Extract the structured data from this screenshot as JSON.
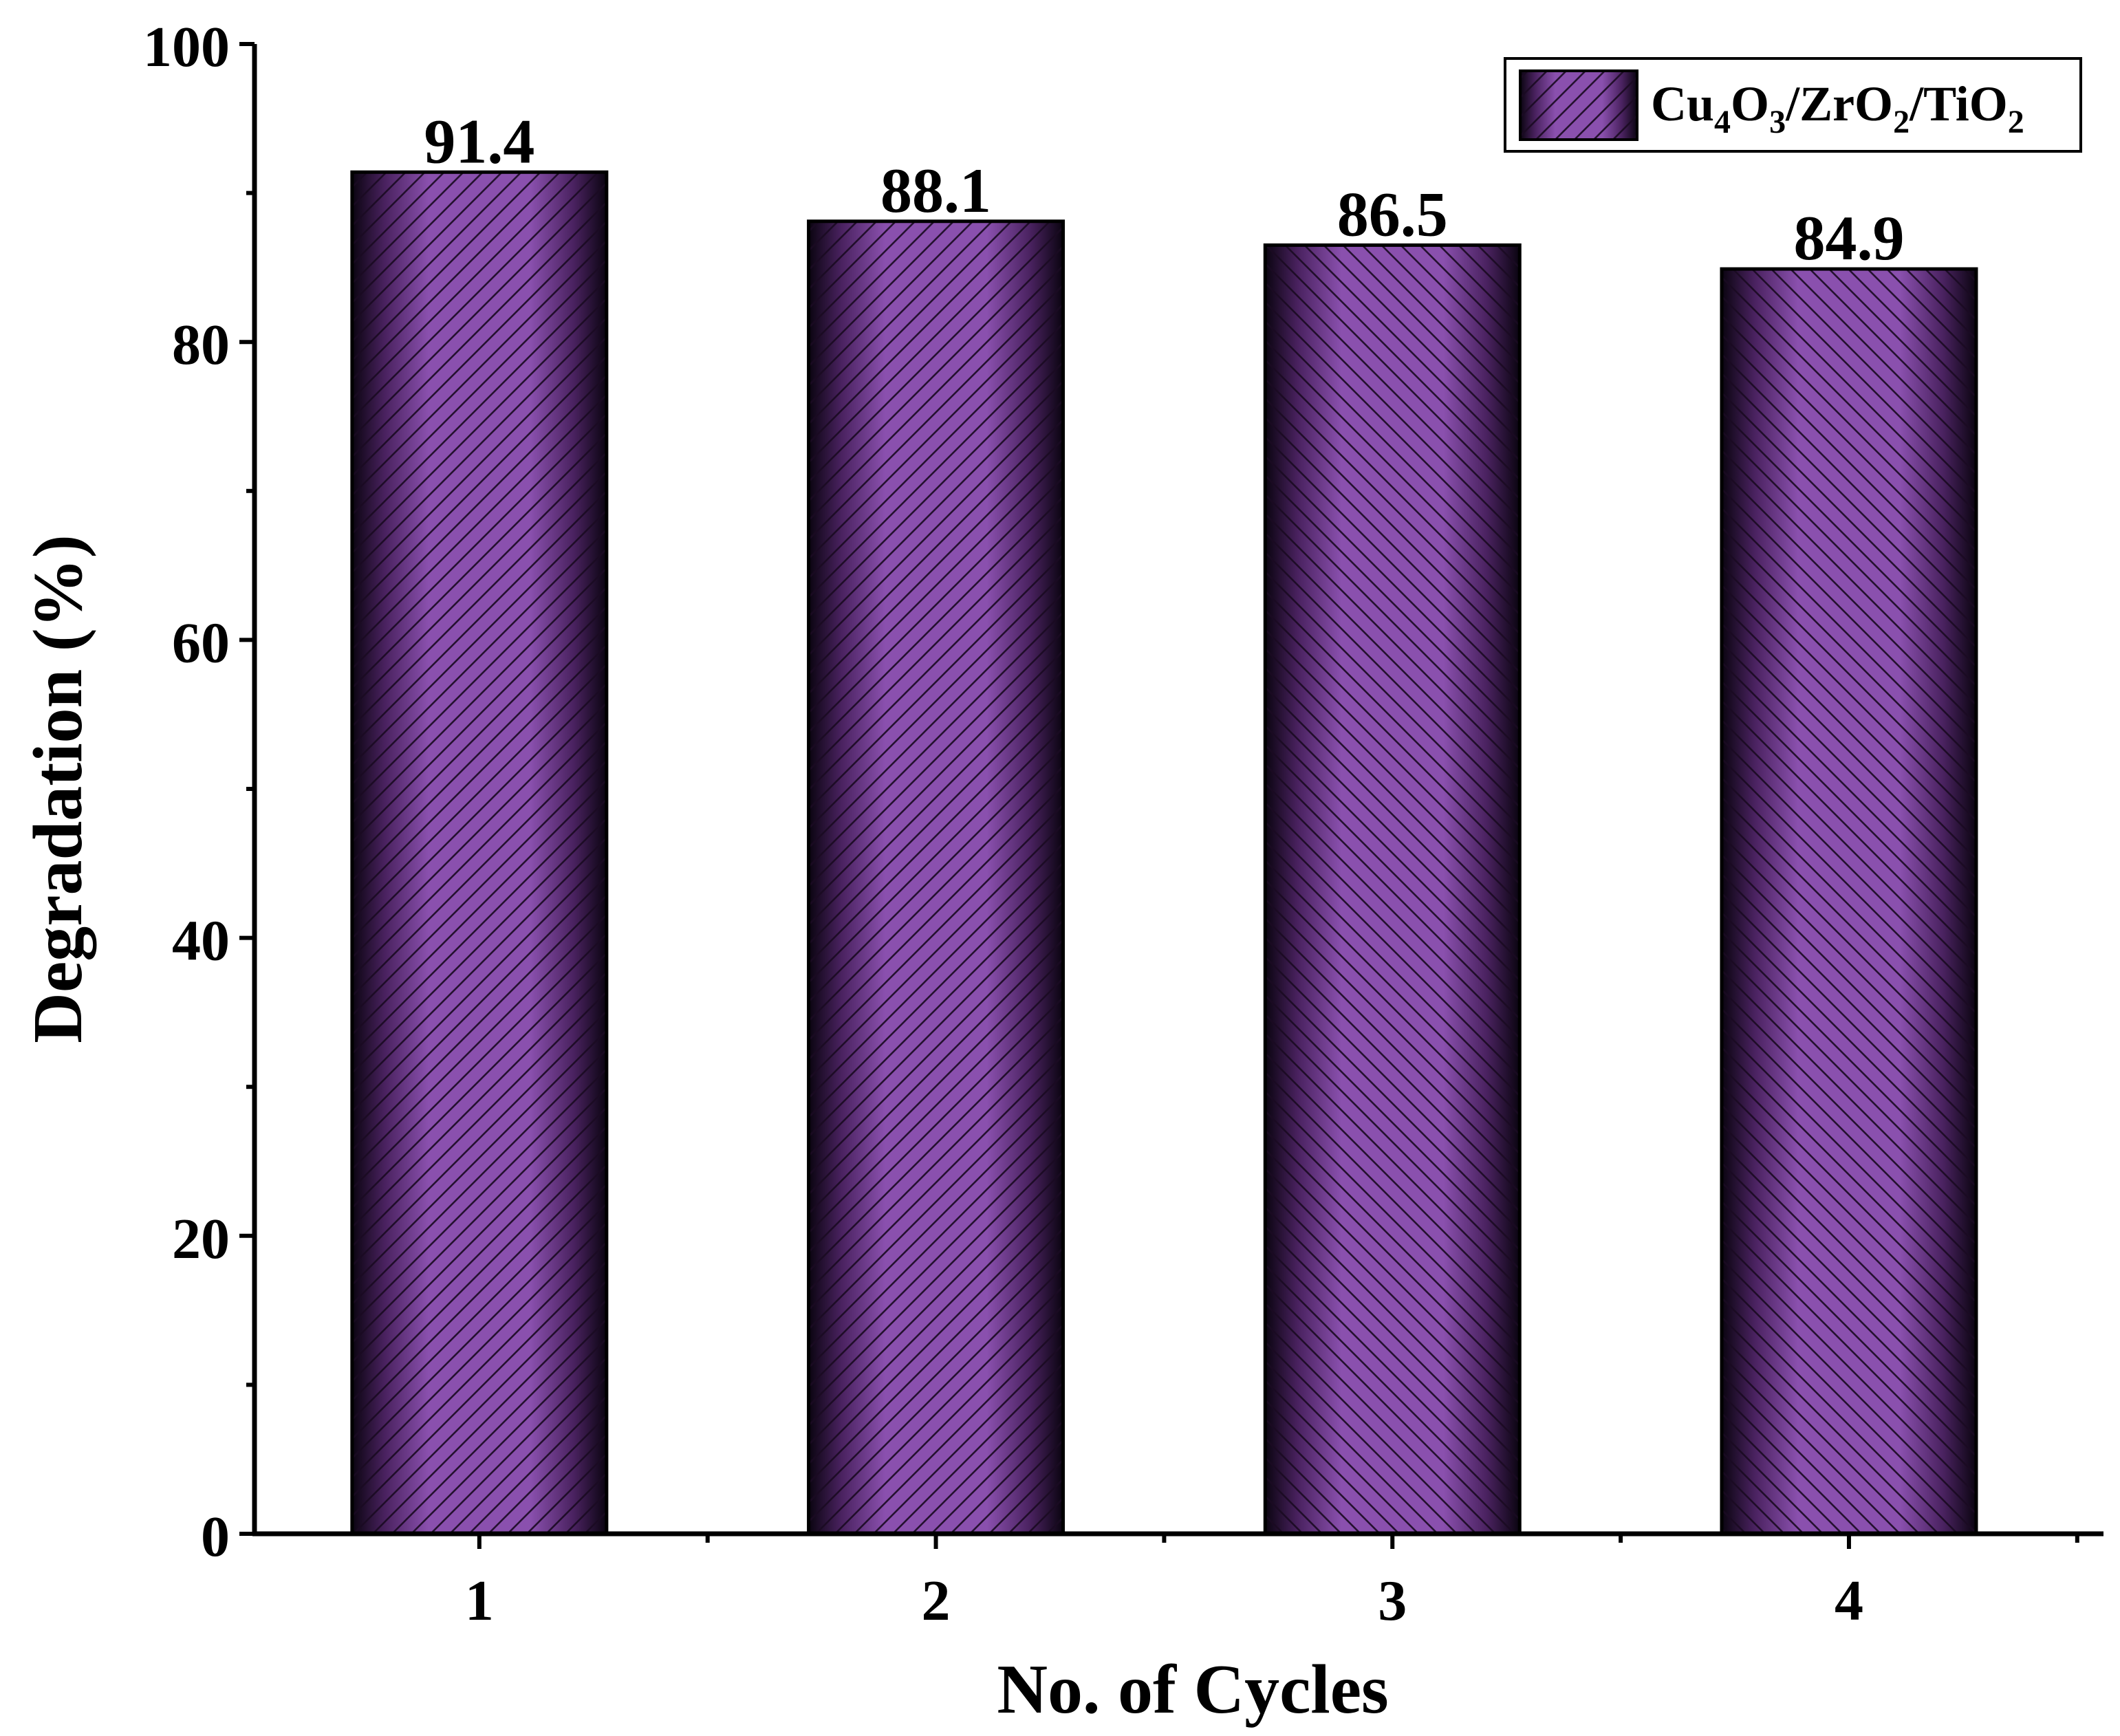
{
  "chart_data": {
    "type": "bar",
    "categories": [
      "1",
      "2",
      "3",
      "4"
    ],
    "series": [
      {
        "name": "Cu4O3/ZrO2/TiO2",
        "legend_parts": [
          {
            "t": "Cu",
            "sub": false
          },
          {
            "t": "4",
            "sub": true
          },
          {
            "t": "O",
            "sub": false
          },
          {
            "t": "3",
            "sub": true
          },
          {
            "t": "/ZrO",
            "sub": false
          },
          {
            "t": "2",
            "sub": true
          },
          {
            "t": "/TiO",
            "sub": false
          },
          {
            "t": "2",
            "sub": true
          }
        ],
        "values": [
          91.4,
          88.1,
          86.5,
          84.9
        ],
        "value_labels": [
          "91.4",
          "88.1",
          "86.5",
          "84.9"
        ]
      }
    ],
    "xlabel": "No. of Cycles",
    "ylabel": "Degradation (%)",
    "ylim": [
      0,
      100
    ],
    "yticks": [
      0,
      20,
      40,
      60,
      80,
      100
    ],
    "ytick_labels": [
      "0",
      "20",
      "40",
      "60",
      "80",
      "100"
    ],
    "grid": false,
    "legend_position": "top-right",
    "colors": {
      "bar_fill": "#8a50ae",
      "bar_edge": "#000000",
      "hatch": "#1a0a22",
      "axis": "#000000"
    }
  }
}
